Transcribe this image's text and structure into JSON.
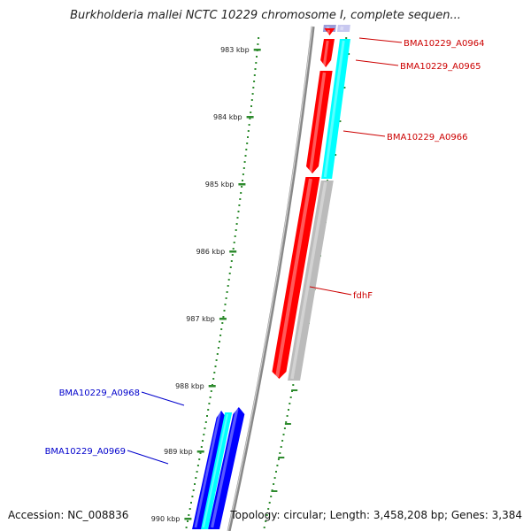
{
  "title": "Burkholderia mallei NCTC 10229 chromosome I, complete sequen...",
  "footer": {
    "accession": "Accession: NC_008836",
    "topology": "Topology: circular; Length: 3,458,208 bp; Genes: 3,384"
  },
  "ticks": [
    "983 kbp",
    "984 kbp",
    "985 kbp",
    "986 kbp",
    "987 kbp",
    "988 kbp",
    "989 kbp",
    "990 kbp"
  ],
  "genes": [
    {
      "name": "BMA10229_A0964",
      "strand": "forward"
    },
    {
      "name": "BMA10229_A0965",
      "strand": "forward"
    },
    {
      "name": "BMA10229_A0966",
      "strand": "forward"
    },
    {
      "name": "fdhF",
      "strand": "forward"
    },
    {
      "name": "BMA10229_A0968",
      "strand": "reverse"
    },
    {
      "name": "BMA10229_A0969",
      "strand": "reverse"
    }
  ],
  "colors": {
    "forward_cds": "#ff0000",
    "reverse_cds": "#0000ff",
    "forward_feature": "#00ffff",
    "fdhF_feature": "#bbbbbb",
    "backbone": "#888888",
    "tick": "#2e8b2e",
    "forward_label": "#cc0000",
    "reverse_label": "#0000cc"
  }
}
